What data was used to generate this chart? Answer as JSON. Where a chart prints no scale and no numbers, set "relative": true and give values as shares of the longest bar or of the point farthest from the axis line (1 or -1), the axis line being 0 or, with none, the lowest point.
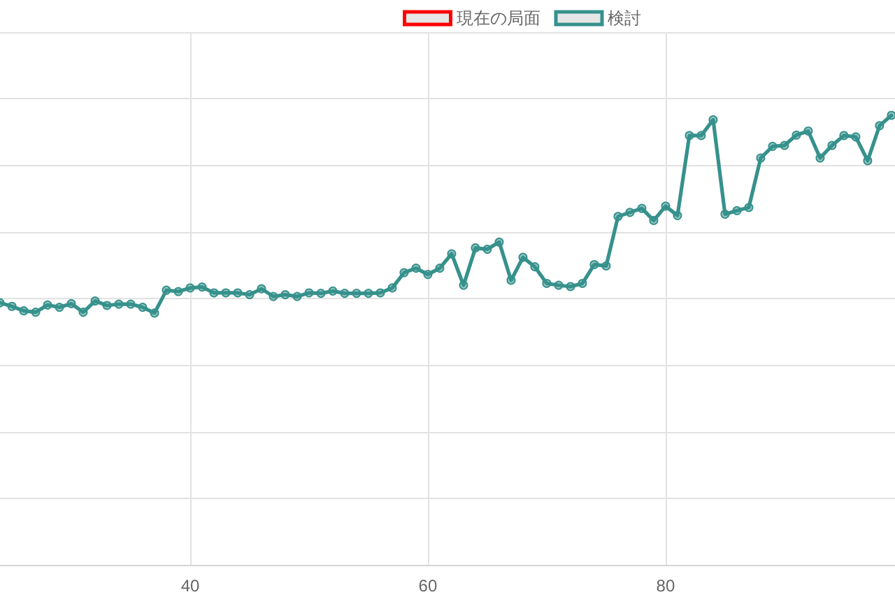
{
  "chart_data": {
    "type": "line",
    "relative": true,
    "x": [
      24,
      25,
      26,
      27,
      28,
      29,
      30,
      31,
      32,
      33,
      34,
      35,
      36,
      37,
      38,
      39,
      40,
      41,
      42,
      43,
      44,
      45,
      46,
      47,
      48,
      49,
      50,
      51,
      52,
      53,
      54,
      55,
      56,
      57,
      58,
      59,
      60,
      61,
      62,
      63,
      64,
      65,
      66,
      67,
      68,
      69,
      70,
      71,
      72,
      73,
      74,
      75,
      76,
      77,
      78,
      79,
      80,
      81,
      82,
      83,
      84,
      85,
      86,
      87,
      88,
      89,
      90,
      91,
      92,
      93,
      94,
      95,
      96,
      97,
      98,
      99
    ],
    "xlim": [
      24,
      99.3
    ],
    "xticks": [
      40,
      60,
      80
    ],
    "series": [
      {
        "name": "現在の局面",
        "color": "#ff0000",
        "values": [
          null,
          null,
          null,
          null,
          null,
          null,
          null,
          null,
          null,
          null,
          null,
          null,
          null,
          null,
          null,
          null,
          null,
          null,
          null,
          null,
          null,
          null,
          null,
          null,
          null,
          null,
          null,
          null,
          null,
          null,
          null,
          null,
          null,
          null,
          null,
          null,
          null,
          null,
          null,
          null,
          null,
          null,
          null,
          null,
          null,
          null,
          null,
          null,
          null,
          null,
          null,
          null,
          null,
          null,
          null,
          null,
          null,
          null,
          null,
          null,
          null,
          null,
          null,
          null,
          null,
          null,
          null,
          null,
          null,
          null,
          null,
          null,
          null,
          null,
          null,
          null
        ]
      },
      {
        "name": "検討",
        "color": "#36918c",
        "values": [
          0.583,
          0.575,
          0.565,
          0.562,
          0.578,
          0.573,
          0.581,
          0.562,
          0.587,
          0.577,
          0.58,
          0.58,
          0.573,
          0.56,
          0.611,
          0.608,
          0.616,
          0.618,
          0.605,
          0.605,
          0.605,
          0.601,
          0.614,
          0.597,
          0.601,
          0.597,
          0.605,
          0.604,
          0.609,
          0.604,
          0.604,
          0.604,
          0.605,
          0.616,
          0.65,
          0.66,
          0.646,
          0.66,
          0.692,
          0.622,
          0.705,
          0.702,
          0.718,
          0.633,
          0.684,
          0.663,
          0.626,
          0.622,
          0.619,
          0.626,
          0.668,
          0.665,
          0.775,
          0.784,
          0.793,
          0.766,
          0.798,
          0.777,
          0.955,
          0.955,
          0.99,
          0.78,
          0.788,
          0.795,
          0.905,
          0.931,
          0.933,
          0.956,
          0.965,
          0.905,
          0.933,
          0.955,
          0.952,
          0.899,
          0.977,
          1
        ]
      }
    ],
    "grid": true,
    "legend": "top",
    "marker": "circle",
    "line_style": "solid"
  }
}
